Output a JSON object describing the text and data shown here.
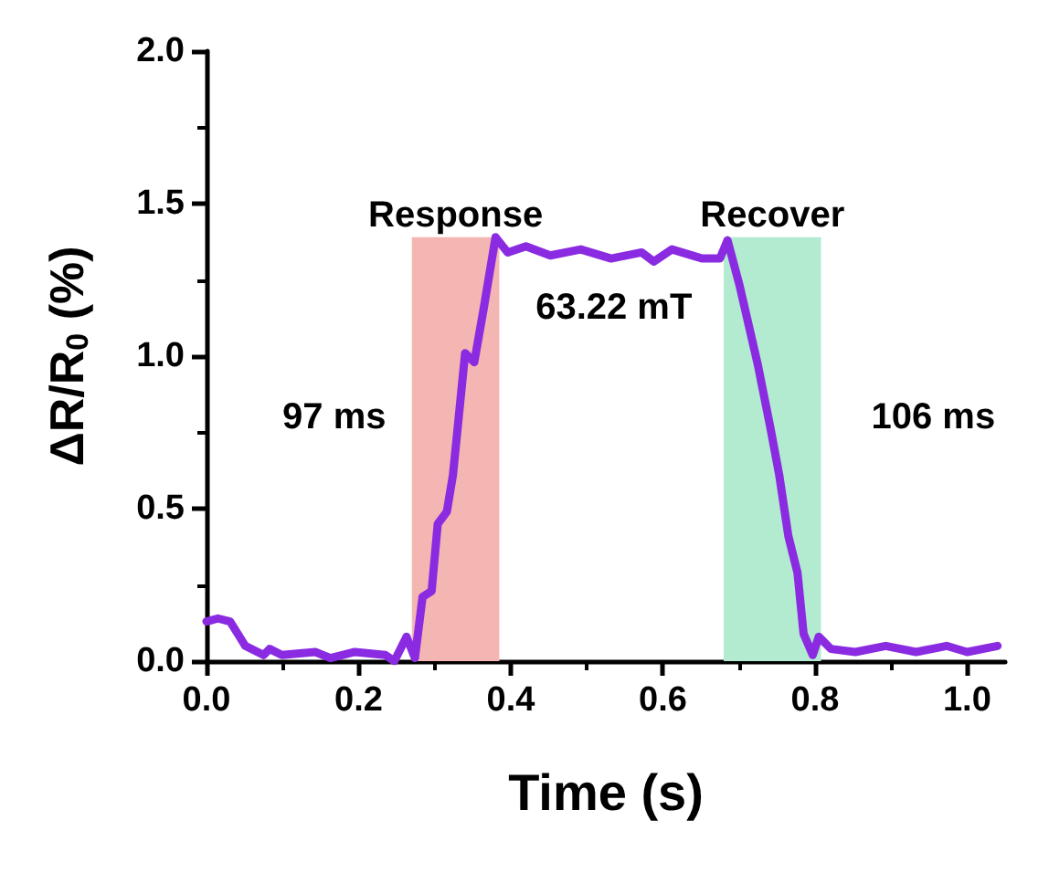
{
  "chart_data": {
    "type": "line",
    "xlabel": "Time (s)",
    "ylabel": "ΔR/R$_{0}$ (%)",
    "x": [
      0.0,
      0.015,
      0.031,
      0.051,
      0.075,
      0.083,
      0.099,
      0.143,
      0.163,
      0.195,
      0.235,
      0.247,
      0.263,
      0.274,
      0.284,
      0.296,
      0.304,
      0.316,
      0.324,
      0.336,
      0.34,
      0.352,
      0.364,
      0.38,
      0.396,
      0.42,
      0.452,
      0.492,
      0.532,
      0.572,
      0.588,
      0.612,
      0.652,
      0.675,
      0.685,
      0.701,
      0.725,
      0.741,
      0.753,
      0.765,
      0.777,
      0.785,
      0.797,
      0.805,
      0.821,
      0.853,
      0.893,
      0.933,
      0.973,
      1.0,
      1.04
    ],
    "series": [
      {
        "color": "#8a2be2",
        "values": [
          0.13,
          0.14,
          0.13,
          0.05,
          0.02,
          0.04,
          0.02,
          0.03,
          0.01,
          0.03,
          0.02,
          0.0,
          0.08,
          0.01,
          0.21,
          0.23,
          0.45,
          0.49,
          0.61,
          0.91,
          1.01,
          0.98,
          1.15,
          1.39,
          1.34,
          1.36,
          1.33,
          1.35,
          1.32,
          1.34,
          1.31,
          1.35,
          1.32,
          1.32,
          1.38,
          1.23,
          0.97,
          0.77,
          0.61,
          0.41,
          0.29,
          0.09,
          0.02,
          0.08,
          0.04,
          0.03,
          0.05,
          0.03,
          0.05,
          0.03,
          0.05
        ]
      }
    ],
    "xlim": [
      0,
      1.05
    ],
    "xticks": [
      {
        "value": 0,
        "label": "0.0"
      },
      0.2,
      0.4,
      0.6,
      0.8,
      {
        "value": 1,
        "label": "1.0"
      }
    ],
    "ylim": [
      0,
      2.0
    ],
    "yticks": [
      {
        "value": 0,
        "label": "0.0"
      },
      0.5,
      {
        "value": 1,
        "label": "1.0"
      },
      1.5,
      {
        "value": 2,
        "label": "2.0"
      }
    ],
    "bands": [
      {
        "axis": "x",
        "from": 0.27,
        "to": 0.385,
        "label": "Response",
        "color": "#f4b6b2"
      },
      {
        "axis": "x",
        "from": 0.68,
        "to": 0.808,
        "label": "Recover",
        "color": "#b3ebd0"
      }
    ],
    "annotations": [
      "97 ms",
      "106 ms",
      "63.22 mT"
    ],
    "grid": false,
    "marker": "none",
    "line_style": "solid"
  }
}
